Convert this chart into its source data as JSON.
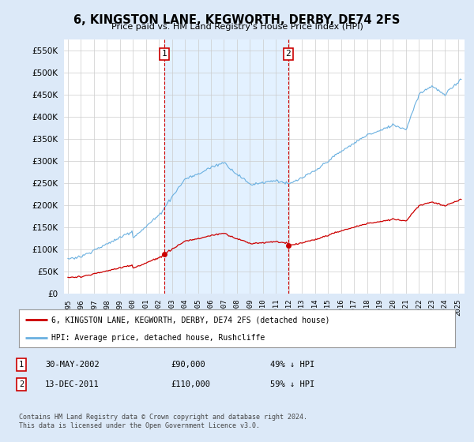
{
  "title": "6, KINGSTON LANE, KEGWORTH, DERBY, DE74 2FS",
  "subtitle": "Price paid vs. HM Land Registry's House Price Index (HPI)",
  "legend_line1": "6, KINGSTON LANE, KEGWORTH, DERBY, DE74 2FS (detached house)",
  "legend_line2": "HPI: Average price, detached house, Rushcliffe",
  "table_rows": [
    {
      "num": "1",
      "date": "30-MAY-2002",
      "price": "£90,000",
      "pct": "49% ↓ HPI"
    },
    {
      "num": "2",
      "date": "13-DEC-2011",
      "price": "£110,000",
      "pct": "59% ↓ HPI"
    }
  ],
  "footnote1": "Contains HM Land Registry data © Crown copyright and database right 2024.",
  "footnote2": "This data is licensed under the Open Government Licence v3.0.",
  "sale1_year": 2002.41,
  "sale1_price": 90000,
  "sale2_year": 2011.95,
  "sale2_price": 110000,
  "ylim": [
    0,
    575000
  ],
  "yticks": [
    0,
    50000,
    100000,
    150000,
    200000,
    250000,
    300000,
    350000,
    400000,
    450000,
    500000,
    550000
  ],
  "background_color": "#dce9f8",
  "plot_bg_color": "#ffffff",
  "shade_color": "#ddeeff",
  "hpi_color": "#6ab0e0",
  "sale_color": "#cc0000",
  "marker_color": "#cc0000",
  "annotation_color": "#cc0000",
  "grid_color": "#cccccc"
}
